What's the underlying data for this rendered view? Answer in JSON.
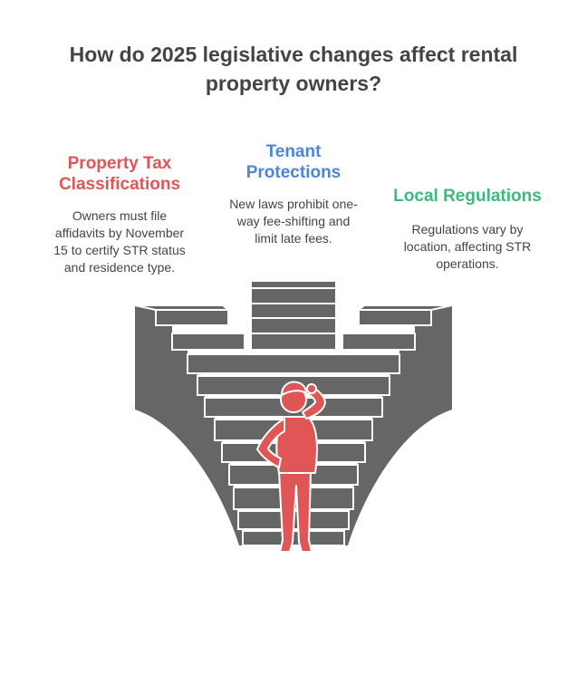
{
  "title": "How do 2025 legislative changes affect rental property owners?",
  "columns": [
    {
      "heading_lines": [
        "Property Tax",
        "Classifications"
      ],
      "body_lines": [
        "Owners must file",
        "affidavits by November",
        "15 to certify STR status",
        "and residence type."
      ],
      "color": "#e05555"
    },
    {
      "heading_lines": [
        "Tenant",
        "Protections"
      ],
      "body_lines": [
        "New laws prohibit one-",
        "way fee-shifting and",
        "limit late fees."
      ],
      "color": "#4a86d8"
    },
    {
      "heading_lines": [
        "Local Regulations"
      ],
      "body_lines": [
        "Regulations vary by",
        "location, affecting STR",
        "operations."
      ],
      "color": "#3fb87f"
    }
  ],
  "illustration": {
    "structure_color": "#666666",
    "figure_color": "#e05555"
  }
}
